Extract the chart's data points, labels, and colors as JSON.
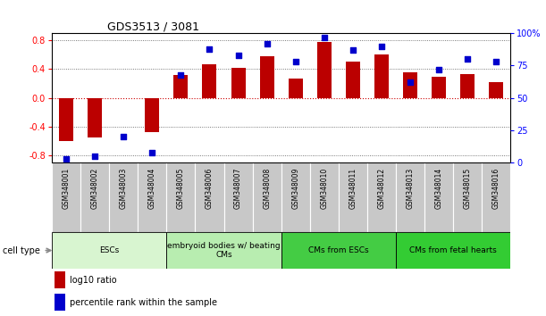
{
  "title": "GDS3513 / 3081",
  "samples": [
    "GSM348001",
    "GSM348002",
    "GSM348003",
    "GSM348004",
    "GSM348005",
    "GSM348006",
    "GSM348007",
    "GSM348008",
    "GSM348009",
    "GSM348010",
    "GSM348011",
    "GSM348012",
    "GSM348013",
    "GSM348014",
    "GSM348015",
    "GSM348016"
  ],
  "log10_ratio": [
    -0.6,
    -0.55,
    0.0,
    -0.48,
    0.32,
    0.47,
    0.42,
    0.58,
    0.27,
    0.78,
    0.5,
    0.6,
    0.36,
    0.3,
    0.33,
    0.22
  ],
  "percentile_rank": [
    3,
    5,
    20,
    8,
    68,
    88,
    83,
    92,
    78,
    97,
    87,
    90,
    62,
    72,
    80,
    78
  ],
  "cell_types": [
    {
      "label": "ESCs",
      "start": 0,
      "end": 3,
      "color": "#d8f5d0"
    },
    {
      "label": "embryoid bodies w/ beating\nCMs",
      "start": 4,
      "end": 7,
      "color": "#b8edb0"
    },
    {
      "label": "CMs from ESCs",
      "start": 8,
      "end": 11,
      "color": "#44cc44"
    },
    {
      "label": "CMs from fetal hearts",
      "start": 12,
      "end": 15,
      "color": "#33cc33"
    }
  ],
  "ylim_left": [
    -0.9,
    0.9
  ],
  "ylim_right": [
    0,
    100
  ],
  "yticks_left": [
    -0.8,
    -0.4,
    0.0,
    0.4,
    0.8
  ],
  "yticks_right": [
    0,
    25,
    50,
    75,
    100
  ],
  "ytick_labels_right": [
    "0",
    "25",
    "50",
    "75",
    "100%"
  ],
  "bar_color": "#bb0000",
  "dot_color": "#0000cc",
  "grid_color": "#555555",
  "zero_line_color": "#cc0000",
  "header_bg": "#c8c8c8",
  "cell_type_label": "cell type"
}
